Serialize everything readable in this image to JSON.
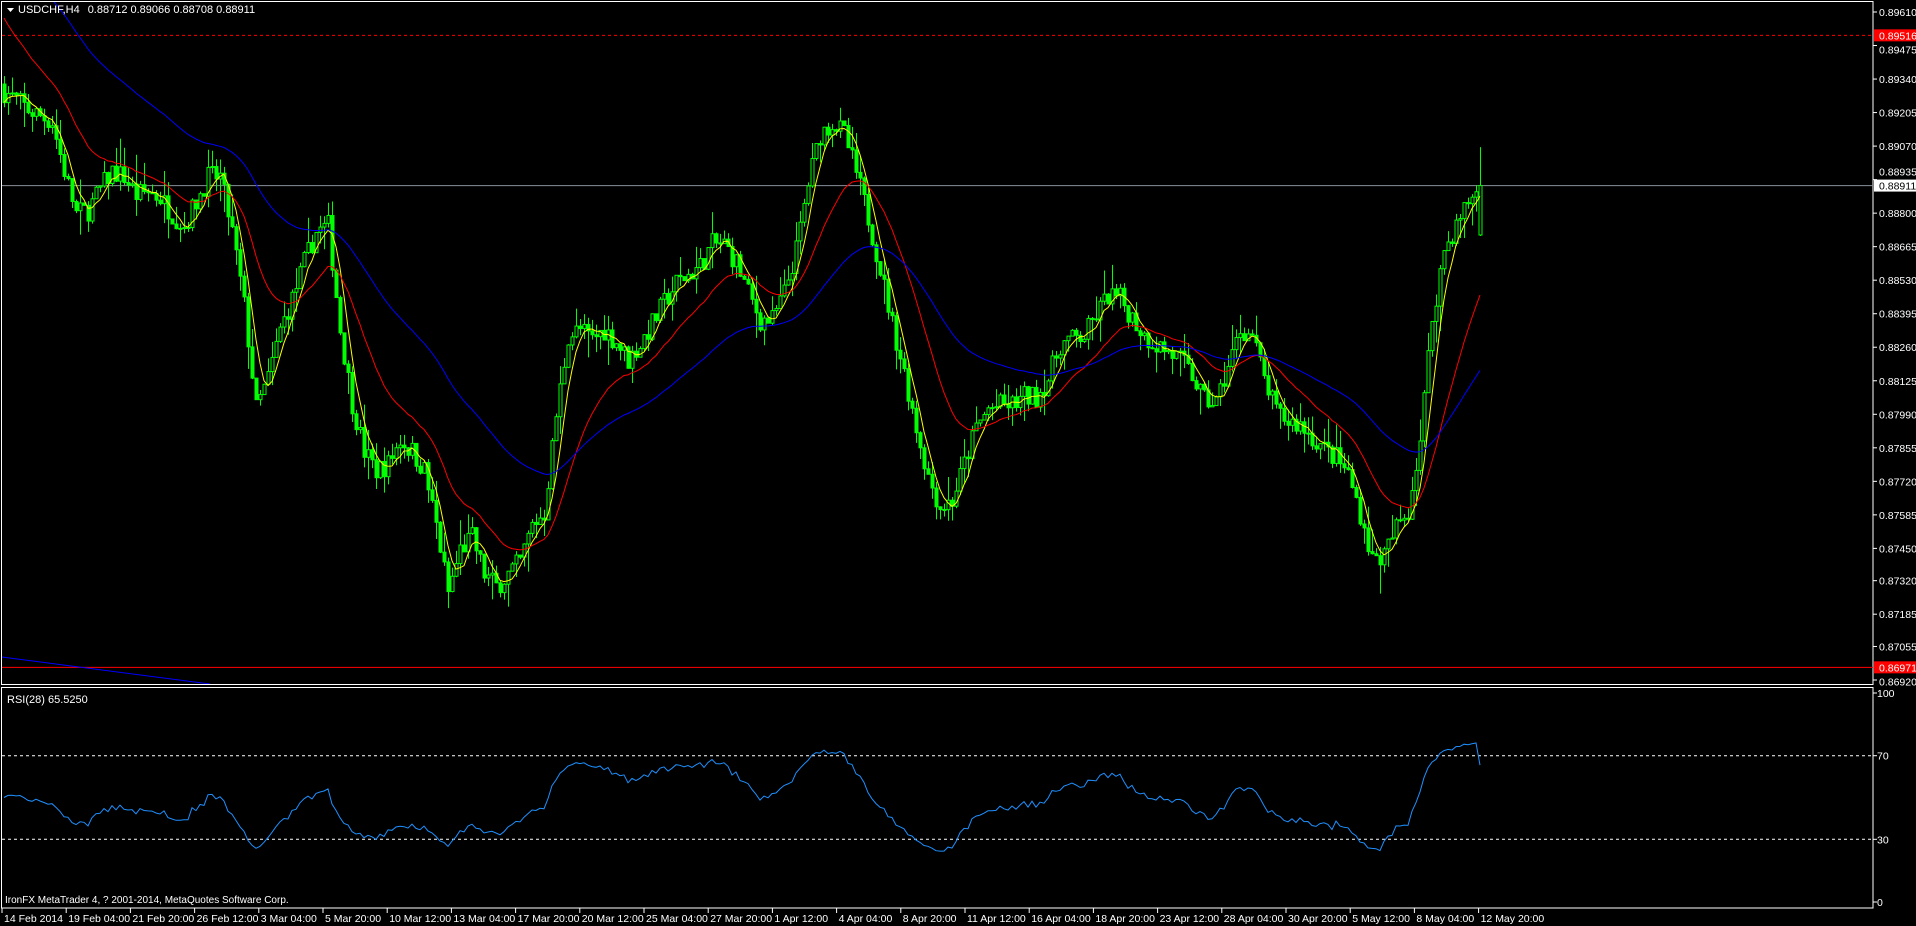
{
  "window": {
    "symbol_title": "USDCHF,H4",
    "ohlc_readout": "0.88712 0.89066 0.88708 0.88911",
    "menu_icon": "triangle-down-icon",
    "copyright": "IronFX MetaTrader 4, ? 2001-2014, MetaQuotes Software Corp."
  },
  "colors": {
    "background": "#000000",
    "candle": "#00ff00",
    "ma_fast": "#ffff00",
    "ma_medium": "#ff0000",
    "ma_slow": "#0000ff",
    "rsi": "#1e90ff",
    "high_level": "#ff0000",
    "low_level": "#ff0000",
    "bid_line": "#8a9099",
    "axis": "#ffffff"
  },
  "chart_data": {
    "type": "candlestick",
    "symbol": "USDCHF",
    "timeframe": "H4",
    "last_bar": {
      "open": 0.88712,
      "high": 0.89066,
      "low": 0.88708,
      "close": 0.88911
    },
    "close_samples": [
      0.8929,
      0.89256,
      0.89216,
      0.89192,
      0.89167,
      0.8897,
      0.88798,
      0.88813,
      0.88897,
      0.8897,
      0.88946,
      0.88872,
      0.88887,
      0.88862,
      0.88798,
      0.88749,
      0.88847,
      0.88946,
      0.88946,
      0.88724,
      0.88429,
      0.88011,
      0.88134,
      0.88331,
      0.88454,
      0.88601,
      0.88724,
      0.88749,
      0.88331,
      0.88036,
      0.87839,
      0.87765,
      0.8779,
      0.87888,
      0.87839,
      0.87765,
      0.87544,
      0.87273,
      0.87445,
      0.87494,
      0.87347,
      0.87298,
      0.87347,
      0.87396,
      0.87544,
      0.87593,
      0.87986,
      0.88306,
      0.88331,
      0.88291,
      0.88331,
      0.88282,
      0.88208,
      0.88272,
      0.88355,
      0.88439,
      0.88518,
      0.88552,
      0.88587,
      0.88675,
      0.88675,
      0.88601,
      0.88478,
      0.8837,
      0.8837,
      0.88478,
      0.88651,
      0.88921,
      0.89118,
      0.89167,
      0.89118,
      0.88961,
      0.88783,
      0.88577,
      0.88355,
      0.88159,
      0.87937,
      0.8774,
      0.87617,
      0.87642,
      0.8779,
      0.87937,
      0.88011,
      0.88026,
      0.88026,
      0.8806,
      0.8806,
      0.88134,
      0.88272,
      0.88291,
      0.88306,
      0.8839,
      0.88469,
      0.88454,
      0.8838,
      0.88306,
      0.88272,
      0.88242,
      0.88208,
      0.88144,
      0.88045,
      0.88036,
      0.88183,
      0.88331,
      0.88306,
      0.88134,
      0.87996,
      0.87962,
      0.87947,
      0.87898,
      0.87849,
      0.87814,
      0.8775,
      0.87593,
      0.87406,
      0.87421,
      0.87534,
      0.87603,
      0.87888,
      0.8838,
      0.88651,
      0.88749,
      0.88847,
      0.88911
    ],
    "price_axis": {
      "ticks": [
        "0.89610",
        "0.89475",
        "0.89340",
        "0.89205",
        "0.89070",
        "0.88935",
        "0.88800",
        "0.88665",
        "0.88530",
        "0.88395",
        "0.88260",
        "0.88125",
        "0.87990",
        "0.87855",
        "0.87720",
        "0.87585",
        "0.87450",
        "0.87320",
        "0.87185",
        "0.87055",
        "0.86920"
      ],
      "range": [
        0.8692,
        0.8961
      ]
    },
    "levels": [
      {
        "label": "0.89516",
        "price": 0.89516,
        "style": "dashed",
        "color": "#ff0000"
      },
      {
        "label": "0.86971",
        "price": 0.86971,
        "style": "solid",
        "color": "#ff0000"
      },
      {
        "label": "0.88911",
        "price": 0.88911,
        "style": "solid",
        "color": "#8a9099",
        "bid": true
      }
    ],
    "time_axis": [
      "14 Feb 2014",
      "19 Feb 04:00",
      "21 Feb 20:00",
      "26 Feb 12:00",
      "3 Mar 04:00",
      "5 Mar 20:00",
      "10 Mar 12:00",
      "13 Mar 04:00",
      "17 Mar 20:00",
      "20 Mar 12:00",
      "25 Mar 04:00",
      "27 Mar 20:00",
      "1 Apr 12:00",
      "4 Apr 04:00",
      "8 Apr 20:00",
      "11 Apr 12:00",
      "16 Apr 04:00",
      "18 Apr 20:00",
      "23 Apr 12:00",
      "28 Apr 04:00",
      "30 Apr 20:00",
      "5 May 12:00",
      "8 May 04:00",
      "12 May 20:00"
    ],
    "moving_averages": [
      {
        "color": "#ffff00"
      },
      {
        "color": "#ff0000"
      },
      {
        "color": "#0000ff"
      }
    ],
    "rsi": {
      "label": "RSI(28) 65.5250",
      "period": 28,
      "value": 65.525,
      "range": [
        0,
        100
      ],
      "levels": [
        70,
        30
      ],
      "ticks": [
        "100",
        "70",
        "30",
        "0"
      ]
    },
    "grid": false
  }
}
